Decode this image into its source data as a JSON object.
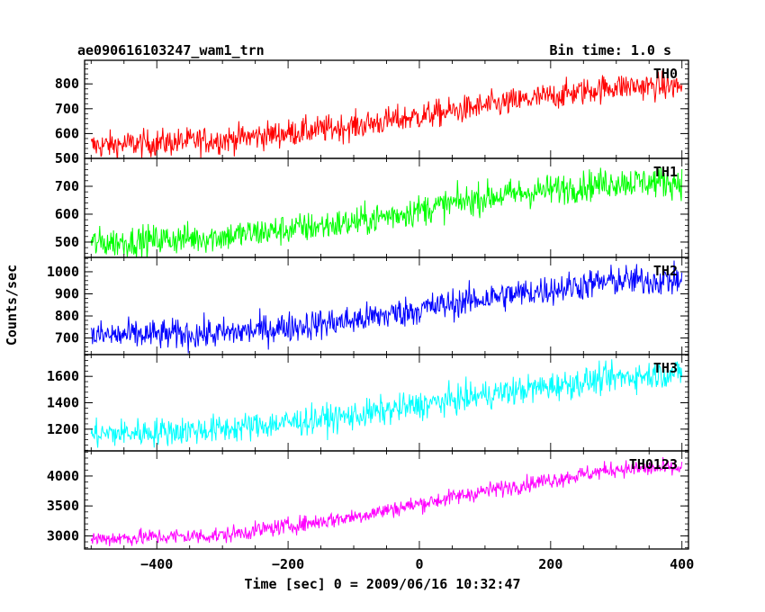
{
  "chart_data": {
    "type": "line",
    "title_left": "ae090616103247_wam1_trn",
    "title_right": "Bin time: 1.0 s",
    "xlabel": "Time [sec] 0 = 2009/06/16 10:32:47",
    "ylabel": "Counts/sec",
    "xlim": [
      -510,
      410
    ],
    "x_ticks": [
      -400,
      -200,
      0,
      200,
      400
    ],
    "x_tick_labels": [
      "−400",
      "−200",
      "0",
      "200",
      "400"
    ],
    "x_range": [
      -500,
      400
    ],
    "panels": [
      {
        "name": "TH0",
        "color": "#ff0000",
        "ylim": [
          500,
          895
        ],
        "y_ticks": [
          500,
          600,
          700,
          800
        ],
        "y_tick_labels": [
          "500",
          "600",
          "700",
          "800"
        ],
        "trend": [
          [
            -500,
            550
          ],
          [
            -300,
            575
          ],
          [
            -100,
            630
          ],
          [
            100,
            710
          ],
          [
            300,
            790
          ],
          [
            400,
            790
          ]
        ],
        "noise": 28
      },
      {
        "name": "TH1",
        "color": "#00ff00",
        "ylim": [
          445,
          800
        ],
        "y_ticks": [
          500,
          600,
          700
        ],
        "y_tick_labels": [
          "500",
          "600",
          "700"
        ],
        "trend": [
          [
            -500,
            495
          ],
          [
            -300,
            520
          ],
          [
            -100,
            570
          ],
          [
            100,
            660
          ],
          [
            300,
            715
          ],
          [
            400,
            715
          ]
        ],
        "noise": 28
      },
      {
        "name": "TH2",
        "color": "#0000ff",
        "ylim": [
          625,
          1065
        ],
        "y_ticks": [
          700,
          800,
          900,
          1000
        ],
        "y_tick_labels": [
          "700",
          "800",
          "900",
          "1000"
        ],
        "trend": [
          [
            -500,
            710
          ],
          [
            -300,
            720
          ],
          [
            -100,
            780
          ],
          [
            100,
            880
          ],
          [
            300,
            960
          ],
          [
            400,
            960
          ]
        ],
        "noise": 35
      },
      {
        "name": "TH3",
        "color": "#00ffff",
        "ylim": [
          1035,
          1765
        ],
        "y_ticks": [
          1200,
          1400,
          1600
        ],
        "y_tick_labels": [
          "1200",
          "1400",
          "1600"
        ],
        "trend": [
          [
            -500,
            1160
          ],
          [
            -300,
            1200
          ],
          [
            -100,
            1300
          ],
          [
            100,
            1460
          ],
          [
            300,
            1590
          ],
          [
            400,
            1630
          ]
        ],
        "noise": 55
      },
      {
        "name": "TH0123",
        "color": "#ff00ff",
        "ylim": [
          2780,
          4420
        ],
        "y_ticks": [
          3000,
          3500,
          4000
        ],
        "y_tick_labels": [
          "3000",
          "3500",
          "4000"
        ],
        "trend": [
          [
            -500,
            2950
          ],
          [
            -300,
            3010
          ],
          [
            -100,
            3320
          ],
          [
            100,
            3750
          ],
          [
            300,
            4120
          ],
          [
            400,
            4130
          ]
        ],
        "noise": 70
      }
    ]
  }
}
